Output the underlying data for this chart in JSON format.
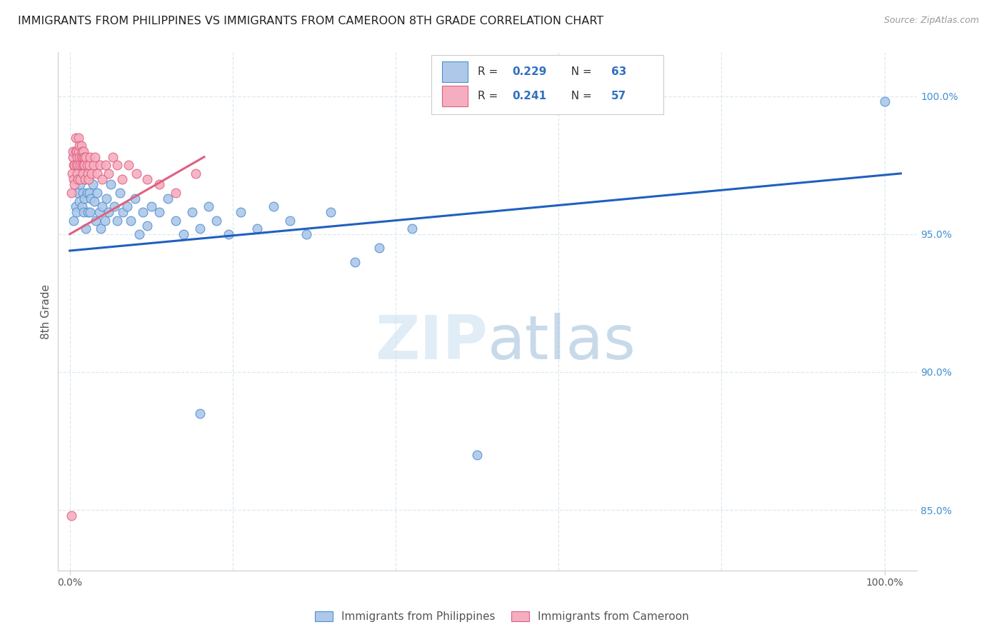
{
  "title": "IMMIGRANTS FROM PHILIPPINES VS IMMIGRANTS FROM CAMEROON 8TH GRADE CORRELATION CHART",
  "source": "Source: ZipAtlas.com",
  "ylabel": "8th Grade",
  "r_philippines": 0.229,
  "n_philippines": 63,
  "r_cameroon": 0.241,
  "n_cameroon": 57,
  "color_philippines_fill": "#adc8e8",
  "color_philippines_edge": "#5090d0",
  "color_cameroon_fill": "#f5aec0",
  "color_cameroon_edge": "#e06080",
  "color_phil_line": "#2060c0",
  "color_cam_line": "#e06080",
  "color_right_axis": "#4090d0",
  "color_legend_text": "#3070c0",
  "legend_labels": [
    "Immigrants from Philippines",
    "Immigrants from Cameroon"
  ],
  "watermark": "ZIPatlas",
  "background_color": "#ffffff",
  "grid_color": "#dce8f0",
  "xlim": [
    -0.015,
    1.04
  ],
  "ylim": [
    0.828,
    1.016
  ],
  "phil_trend_x": [
    0.0,
    1.02
  ],
  "phil_trend_y": [
    0.944,
    0.972
  ],
  "cam_trend_x": [
    0.0,
    0.165
  ],
  "cam_trend_y": [
    0.95,
    0.978
  ],
  "philippines_x": [
    0.005,
    0.007,
    0.008,
    0.01,
    0.01,
    0.012,
    0.013,
    0.014,
    0.015,
    0.016,
    0.017,
    0.018,
    0.019,
    0.02,
    0.021,
    0.022,
    0.023,
    0.024,
    0.025,
    0.026,
    0.028,
    0.03,
    0.032,
    0.034,
    0.036,
    0.038,
    0.04,
    0.043,
    0.045,
    0.048,
    0.05,
    0.055,
    0.058,
    0.062,
    0.065,
    0.07,
    0.075,
    0.08,
    0.085,
    0.09,
    0.095,
    0.1,
    0.11,
    0.12,
    0.13,
    0.14,
    0.15,
    0.16,
    0.17,
    0.18,
    0.195,
    0.21,
    0.23,
    0.25,
    0.27,
    0.29,
    0.32,
    0.35,
    0.38,
    0.42,
    0.16,
    0.5,
    1.0
  ],
  "philippines_y": [
    0.955,
    0.96,
    0.958,
    0.965,
    0.97,
    0.962,
    0.968,
    0.972,
    0.96,
    0.965,
    0.958,
    0.963,
    0.97,
    0.952,
    0.965,
    0.958,
    0.97,
    0.965,
    0.958,
    0.963,
    0.968,
    0.962,
    0.955,
    0.965,
    0.958,
    0.952,
    0.96,
    0.955,
    0.963,
    0.958,
    0.968,
    0.96,
    0.955,
    0.965,
    0.958,
    0.96,
    0.955,
    0.963,
    0.95,
    0.958,
    0.953,
    0.96,
    0.958,
    0.963,
    0.955,
    0.95,
    0.958,
    0.952,
    0.96,
    0.955,
    0.95,
    0.958,
    0.952,
    0.96,
    0.955,
    0.95,
    0.958,
    0.94,
    0.945,
    0.952,
    0.885,
    0.87,
    0.998
  ],
  "cameroon_x": [
    0.002,
    0.003,
    0.004,
    0.004,
    0.005,
    0.005,
    0.006,
    0.006,
    0.007,
    0.007,
    0.008,
    0.008,
    0.009,
    0.009,
    0.01,
    0.01,
    0.011,
    0.011,
    0.012,
    0.012,
    0.013,
    0.013,
    0.014,
    0.014,
    0.015,
    0.015,
    0.016,
    0.016,
    0.017,
    0.017,
    0.018,
    0.018,
    0.019,
    0.02,
    0.021,
    0.022,
    0.023,
    0.024,
    0.025,
    0.027,
    0.029,
    0.031,
    0.034,
    0.037,
    0.04,
    0.044,
    0.048,
    0.053,
    0.058,
    0.064,
    0.072,
    0.082,
    0.095,
    0.11,
    0.13,
    0.155,
    0.002
  ],
  "cameroon_y": [
    0.965,
    0.972,
    0.978,
    0.98,
    0.97,
    0.975,
    0.968,
    0.975,
    0.98,
    0.985,
    0.975,
    0.98,
    0.972,
    0.978,
    0.97,
    0.975,
    0.98,
    0.985,
    0.978,
    0.982,
    0.975,
    0.97,
    0.978,
    0.982,
    0.975,
    0.98,
    0.972,
    0.978,
    0.975,
    0.98,
    0.978,
    0.975,
    0.97,
    0.978,
    0.975,
    0.972,
    0.97,
    0.975,
    0.978,
    0.972,
    0.975,
    0.978,
    0.972,
    0.975,
    0.97,
    0.975,
    0.972,
    0.978,
    0.975,
    0.97,
    0.975,
    0.972,
    0.97,
    0.968,
    0.965,
    0.972,
    0.848
  ]
}
